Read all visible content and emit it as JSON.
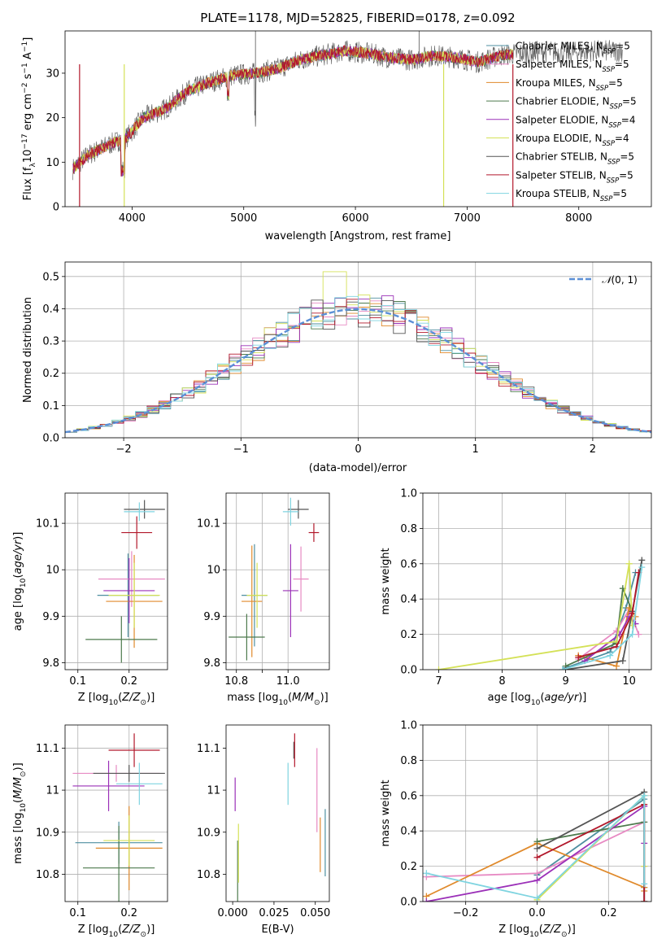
{
  "colors": {
    "Chabrier MILES": "#4e8fa0",
    "Salpeter MILES": "#e78ac3",
    "Kroupa MILES": "#e08a2c",
    "Chabrier ELODIE": "#4d7a4d",
    "Salpeter ELODIE": "#9b30b8",
    "Kroupa ELODIE": "#d4e157",
    "Chabrier STELIB": "#555555",
    "Salpeter STELIB": "#b2182b",
    "Kroupa STELIB": "#7fd4e0",
    "normal": "#5b8fd6",
    "grid": "#b0b0b0"
  },
  "chart_data": [
    {
      "id": "spectrum",
      "type": "line",
      "title": "PLATE=1178, MJD=52825, FIBERID=0178, z=0.092",
      "xlabel": "wavelength [Angstrom, rest frame]",
      "ylabel": "Flux [f_λ10^{-17} erg cm^{-2} s^{-1} A^{-1}]",
      "xlim": [
        3400,
        8650
      ],
      "ylim": [
        0,
        39.5
      ],
      "xticks": [
        4000,
        5000,
        6000,
        7000,
        8000
      ],
      "yticks": [
        0,
        10,
        20,
        30
      ],
      "grid": false,
      "legend_position": "right",
      "legend": [
        {
          "model": "Chabrier MILES",
          "nssp": "5"
        },
        {
          "model": "Salpeter MILES",
          "nssp": "5"
        },
        {
          "model": "Kroupa MILES",
          "nssp": "5"
        },
        {
          "model": "Chabrier ELODIE",
          "nssp": "5"
        },
        {
          "model": "Salpeter ELODIE",
          "nssp": "4"
        },
        {
          "model": "Kroupa ELODIE",
          "nssp": "4"
        },
        {
          "model": "Chabrier STELIB",
          "nssp": "5"
        },
        {
          "model": "Salpeter STELIB",
          "nssp": "5"
        },
        {
          "model": "Kroupa STELIB",
          "nssp": "5"
        }
      ],
      "data_x": [
        3470,
        3600,
        3800,
        3950,
        4100,
        4300,
        4500,
        4700,
        4900,
        5100,
        5300,
        5500,
        5700,
        5900,
        6100,
        6300,
        6500,
        6700,
        6900,
        7100,
        7300,
        7500,
        7700,
        7900,
        8100,
        8300
      ],
      "data_y": [
        8.5,
        11.5,
        14,
        15.5,
        20,
        22,
        26,
        28,
        29.5,
        30,
        31,
        33,
        34,
        35,
        34.5,
        33.5,
        33,
        34,
        33.5,
        32.5,
        34,
        34.5,
        35,
        34.5,
        35,
        35
      ]
    },
    {
      "id": "residuals",
      "type": "histogram",
      "xlabel": "(data-model)/error",
      "ylabel": "Normed distribution",
      "xlim": [
        -2.5,
        2.5
      ],
      "ylim": [
        0,
        0.545
      ],
      "xticks": [
        -2,
        -1,
        0,
        1,
        2
      ],
      "xticklabels": [
        "−2",
        "−1",
        "0",
        "1",
        "2"
      ],
      "yticks": [
        0.0,
        0.1,
        0.2,
        0.3,
        0.4,
        0.5
      ],
      "grid": true,
      "legend": "N(0,1)",
      "legend_position": "top-right",
      "bin_width": 0.1,
      "bin_start": -2.5
    },
    {
      "id": "age-vs-Z",
      "type": "errorbar",
      "xlabel": "Z [log10(Z/Zsun)]",
      "ylabel": "age [log10(age/yr)]",
      "xlim": [
        0.075,
        0.275
      ],
      "ylim": [
        9.785,
        10.165
      ],
      "xticks": [
        0.1,
        0.2
      ],
      "yticks": [
        9.8,
        9.9,
        10.0,
        10.1
      ],
      "grid": true,
      "points": [
        {
          "model": "Chabrier MILES",
          "x": 0.198,
          "y": 9.945,
          "xerr": 0.06,
          "yerr": 0.09
        },
        {
          "model": "Salpeter MILES",
          "x": 0.205,
          "y": 9.98,
          "xerr": 0.065,
          "yerr": 0.06
        },
        {
          "model": "Kroupa MILES",
          "x": 0.21,
          "y": 9.932,
          "xerr": 0.055,
          "yerr": 0.1
        },
        {
          "model": "Chabrier ELODIE",
          "x": 0.185,
          "y": 9.85,
          "xerr": 0.07,
          "yerr": 0.05
        },
        {
          "model": "Salpeter ELODIE",
          "x": 0.2,
          "y": 9.955,
          "xerr": 0.05,
          "yerr": 0.07
        },
        {
          "model": "Kroupa ELODIE",
          "x": 0.21,
          "y": 9.945,
          "xerr": 0.05,
          "yerr": 0.07
        },
        {
          "model": "Chabrier STELIB",
          "x": 0.23,
          "y": 10.13,
          "xerr": 0.04,
          "yerr": 0.02
        },
        {
          "model": "Salpeter STELIB",
          "x": 0.215,
          "y": 10.08,
          "xerr": 0.03,
          "yerr": 0.035
        },
        {
          "model": "Kroupa STELIB",
          "x": 0.22,
          "y": 10.125,
          "xerr": 0.03,
          "yerr": 0.02
        }
      ]
    },
    {
      "id": "age-vs-mass",
      "type": "errorbar",
      "xlabel": "mass [log10(M/Msun)]",
      "ylabel": "",
      "xlim": [
        10.76,
        11.16
      ],
      "ylim": [
        9.785,
        10.165
      ],
      "xticks": [
        10.8,
        10.9,
        11.0
      ],
      "xticklabels": [
        "10.8",
        "",
        "11.0"
      ],
      "yticks": [
        9.8,
        9.9,
        10.0,
        10.1
      ],
      "grid": true,
      "points": [
        {
          "model": "Chabrier MILES",
          "x": 10.87,
          "y": 9.945,
          "xerr": 0.05,
          "yerr": 0.11
        },
        {
          "model": "Salpeter MILES",
          "x": 11.05,
          "y": 9.98,
          "xerr": 0.03,
          "yerr": 0.07
        },
        {
          "model": "Kroupa MILES",
          "x": 10.86,
          "y": 9.932,
          "xerr": 0.04,
          "yerr": 0.12
        },
        {
          "model": "Chabrier ELODIE",
          "x": 10.84,
          "y": 9.855,
          "xerr": 0.07,
          "yerr": 0.05
        },
        {
          "model": "Salpeter ELODIE",
          "x": 11.01,
          "y": 9.955,
          "xerr": 0.03,
          "yerr": 0.1
        },
        {
          "model": "Kroupa ELODIE",
          "x": 10.88,
          "y": 9.945,
          "xerr": 0.04,
          "yerr": 0.07
        },
        {
          "model": "Chabrier STELIB",
          "x": 11.04,
          "y": 10.13,
          "xerr": 0.04,
          "yerr": 0.02
        },
        {
          "model": "Salpeter STELIB",
          "x": 11.1,
          "y": 10.08,
          "xerr": 0.02,
          "yerr": 0.02
        },
        {
          "model": "Kroupa STELIB",
          "x": 11.01,
          "y": 10.125,
          "xerr": 0.03,
          "yerr": 0.03
        }
      ]
    },
    {
      "id": "weight-vs-age",
      "type": "line",
      "xlabel": "age [log10(age/yr)]",
      "ylabel": "mass weight",
      "xlim": [
        6.75,
        10.35
      ],
      "ylim": [
        0,
        1
      ],
      "xticks": [
        7,
        8,
        9,
        10
      ],
      "yticks": [
        0.0,
        0.2,
        0.4,
        0.6,
        0.8,
        1.0
      ],
      "grid": true,
      "series": [
        {
          "model": "Chabrier MILES",
          "x": [
            9.0,
            9.7,
            9.95,
            10.1
          ],
          "y": [
            0.01,
            0.1,
            0.35,
            0.55
          ]
        },
        {
          "model": "Salpeter MILES",
          "x": [
            9.2,
            9.8,
            10.0,
            10.15
          ],
          "y": [
            0.06,
            0.22,
            0.34,
            0.2
          ]
        },
        {
          "model": "Kroupa MILES",
          "x": [
            9.2,
            9.8,
            10.0,
            10.1
          ],
          "y": [
            0.08,
            0.02,
            0.35,
            0.3
          ]
        },
        {
          "model": "Chabrier ELODIE",
          "x": [
            9.0,
            9.8,
            9.9,
            10.05
          ],
          "y": [
            0.02,
            0.15,
            0.46,
            0.33
          ]
        },
        {
          "model": "Salpeter ELODIE",
          "x": [
            9.3,
            9.85,
            10.0,
            10.1
          ],
          "y": [
            0.05,
            0.2,
            0.3,
            0.26
          ]
        },
        {
          "model": "Kroupa ELODIE",
          "x": [
            7.0,
            9.8,
            10.0,
            10.05
          ],
          "y": [
            0.0,
            0.16,
            0.6,
            0.25
          ]
        },
        {
          "model": "Chabrier STELIB",
          "x": [
            9.0,
            9.9,
            10.05,
            10.2
          ],
          "y": [
            0.0,
            0.05,
            0.33,
            0.62
          ]
        },
        {
          "model": "Salpeter STELIB",
          "x": [
            9.2,
            9.8,
            10.05,
            10.15
          ],
          "y": [
            0.07,
            0.13,
            0.32,
            0.55
          ]
        },
        {
          "model": "Kroupa STELIB",
          "x": [
            8.95,
            9.7,
            10.05,
            10.2
          ],
          "y": [
            0.0,
            0.08,
            0.2,
            0.58
          ]
        }
      ]
    },
    {
      "id": "mass-vs-Z",
      "type": "errorbar",
      "xlabel": "Z [log10(Z/Zsun)]",
      "ylabel": "mass [log10(M/Msun)]",
      "xlim": [
        0.075,
        0.275
      ],
      "ylim": [
        10.735,
        11.155
      ],
      "xticks": [
        0.1,
        0.2
      ],
      "yticks": [
        10.8,
        10.9,
        11.0,
        11.1
      ],
      "grid": true,
      "points": [
        {
          "model": "Chabrier MILES",
          "x": 0.18,
          "y": 10.875,
          "xerr": 0.085,
          "yerr": 0.05
        },
        {
          "model": "Salpeter MILES",
          "x": 0.175,
          "y": 11.04,
          "xerr": 0.085,
          "yerr": 0.02
        },
        {
          "model": "Kroupa MILES",
          "x": 0.2,
          "y": 10.862,
          "xerr": 0.065,
          "yerr": 0.1
        },
        {
          "model": "Chabrier ELODIE",
          "x": 0.18,
          "y": 10.815,
          "xerr": 0.07,
          "yerr": 0.1
        },
        {
          "model": "Salpeter ELODIE",
          "x": 0.16,
          "y": 11.01,
          "xerr": 0.07,
          "yerr": 0.06
        },
        {
          "model": "Kroupa ELODIE",
          "x": 0.2,
          "y": 10.88,
          "xerr": 0.05,
          "yerr": 0.06
        },
        {
          "model": "Chabrier STELIB",
          "x": 0.2,
          "y": 11.04,
          "xerr": 0.07,
          "yerr": 0.02
        },
        {
          "model": "Salpeter STELIB",
          "x": 0.21,
          "y": 11.095,
          "xerr": 0.05,
          "yerr": 0.04
        },
        {
          "model": "Kroupa STELIB",
          "x": 0.22,
          "y": 11.015,
          "xerr": 0.045,
          "yerr": 0.05
        }
      ]
    },
    {
      "id": "mass-vs-EBV",
      "type": "errorbar",
      "xlabel": "E(B-V)",
      "ylabel": "",
      "xlim": [
        -0.004,
        0.0585
      ],
      "ylim": [
        10.735,
        11.155
      ],
      "xticks": [
        0.0,
        0.025,
        0.05
      ],
      "xticklabels": [
        "0.000",
        "0.025",
        "0.050"
      ],
      "yticks": [
        10.8,
        10.9,
        11.0,
        11.1
      ],
      "grid": false,
      "points": [
        {
          "model": "Chabrier MILES",
          "x": 0.056,
          "y": 10.875,
          "xerr": 0,
          "yerr": 0.08
        },
        {
          "model": "Salpeter MILES",
          "x": 0.051,
          "y": 11.0,
          "xerr": 0,
          "yerr": 0.1
        },
        {
          "model": "Kroupa MILES",
          "x": 0.053,
          "y": 10.87,
          "xerr": 0,
          "yerr": 0.065
        },
        {
          "model": "Chabrier ELODIE",
          "x": 0.003,
          "y": 10.8,
          "xerr": 0,
          "yerr": 0.08
        },
        {
          "model": "Salpeter ELODIE",
          "x": 0.0015,
          "y": 10.99,
          "xerr": 0,
          "yerr": 0.04
        },
        {
          "model": "Kroupa ELODIE",
          "x": 0.0035,
          "y": 10.85,
          "xerr": 0,
          "yerr": 0.07
        },
        {
          "model": "Chabrier STELIB",
          "x": 0.037,
          "y": 11.095,
          "xerr": 0,
          "yerr": 0.02
        },
        {
          "model": "Salpeter STELIB",
          "x": 0.0375,
          "y": 11.095,
          "xerr": 0,
          "yerr": 0.04
        },
        {
          "model": "Kroupa STELIB",
          "x": 0.0335,
          "y": 11.015,
          "xerr": 0,
          "yerr": 0.05
        }
      ]
    },
    {
      "id": "weight-vs-Z",
      "type": "line",
      "xlabel": "Z [log10(Z/Zsun)]",
      "ylabel": "mass weight",
      "xlim": [
        -0.32,
        0.32
      ],
      "ylim": [
        0,
        1
      ],
      "xticks": [
        -0.2,
        0.0,
        0.2
      ],
      "xticklabels": [
        "−0.2",
        "0.0",
        "0.2"
      ],
      "yticks": [
        0.0,
        0.2,
        0.4,
        0.6,
        0.8,
        1.0
      ],
      "grid": true,
      "series": [
        {
          "model": "Chabrier MILES",
          "x": [
            0.0,
            0.3,
            0.3
          ],
          "y": [
            0.15,
            0.58,
            0.08
          ]
        },
        {
          "model": "Salpeter MILES",
          "x": [
            -0.31,
            0.0,
            0.3,
            0.3
          ],
          "y": [
            0.14,
            0.16,
            0.45,
            0.2
          ]
        },
        {
          "model": "Kroupa MILES",
          "x": [
            -0.31,
            0.0,
            0.3,
            0.3
          ],
          "y": [
            0.03,
            0.33,
            0.08,
            0.06
          ]
        },
        {
          "model": "Chabrier ELODIE",
          "x": [
            0.0,
            0.3,
            0.3
          ],
          "y": [
            0.34,
            0.45,
            0.0
          ]
        },
        {
          "model": "Salpeter ELODIE",
          "x": [
            -0.31,
            0.0,
            0.3,
            0.3
          ],
          "y": [
            0.0,
            0.12,
            0.54,
            0.33
          ]
        },
        {
          "model": "Kroupa ELODIE",
          "x": [
            0.0,
            0.3,
            0.3
          ],
          "y": [
            0.01,
            0.6,
            0.2
          ]
        },
        {
          "model": "Chabrier STELIB",
          "x": [
            0.0,
            0.3,
            0.3
          ],
          "y": [
            0.3,
            0.62,
            0.0
          ]
        },
        {
          "model": "Salpeter STELIB",
          "x": [
            0.0,
            0.3,
            0.3
          ],
          "y": [
            0.25,
            0.55,
            0.0
          ]
        },
        {
          "model": "Kroupa STELIB",
          "x": [
            -0.31,
            0.0,
            0.3,
            0.3
          ],
          "y": [
            0.16,
            0.02,
            0.6,
            0.1
          ]
        }
      ]
    }
  ]
}
